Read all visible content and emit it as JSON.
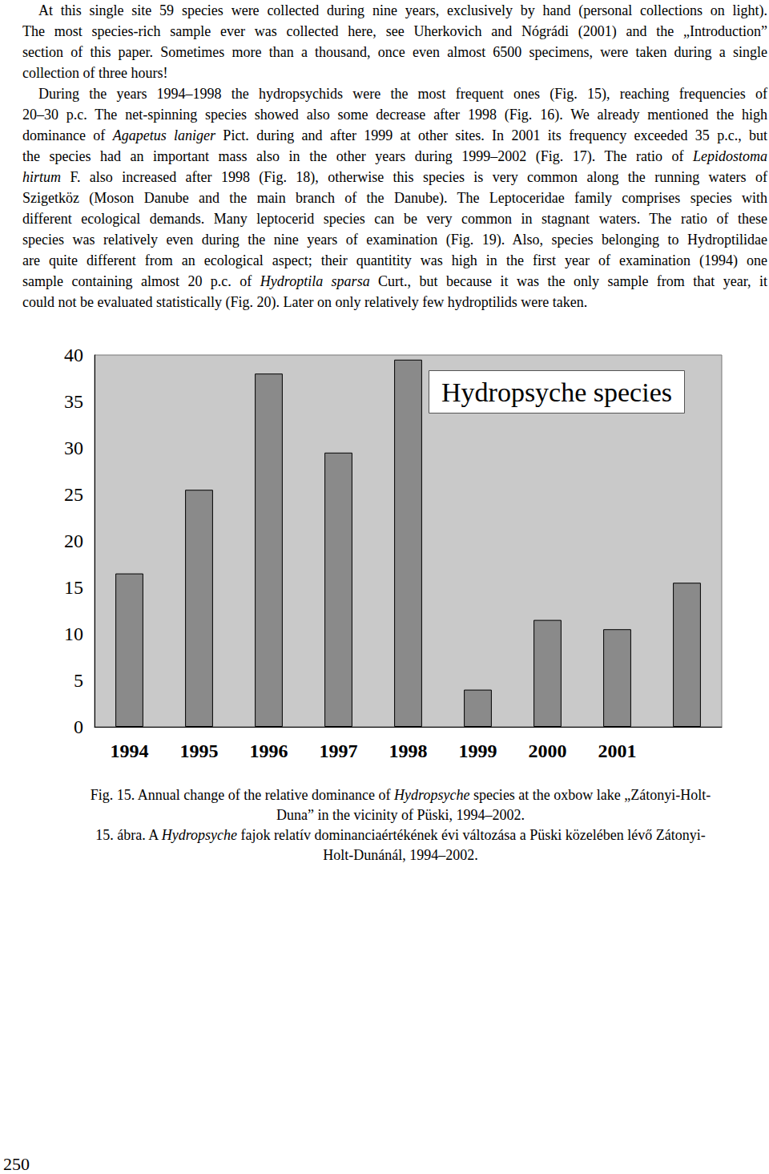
{
  "text": {
    "paragraphs": [
      [
        [
          "At this single site 59 species were collected during nine years, exclusively by hand (personal collections on light)."
        ],
        [
          "The most species-rich sample ever was collected here, see Uherkovich and Nógrádi (2001) and the „Introduction”"
        ],
        [
          "section of this paper. Sometimes more than a thousand, once even almost 6500 specimens, were taken during a single"
        ],
        [
          "collection of three hours!"
        ]
      ],
      [
        [
          "During the years 1994–1998 the hydropsychids were the most frequent ones (Fig. 15), reaching frequencies of"
        ],
        [
          "20–30 p.c. The net-spinning species showed also some decrease after 1998 (Fig. 16). We already mentioned the high"
        ],
        [
          "dominance of ",
          {
            "italic": "Agapetus laniger"
          },
          " Pict. during and after 1999 at other sites. In 2001 its frequency exceeded 35 p.c., but"
        ],
        [
          "the species had an important mass also in the other years during 1999–2002 (Fig. 17). The ratio of ",
          {
            "italic": "Lepidostoma"
          }
        ],
        [
          {
            "italic": "hirtum"
          },
          " F. also increased after 1998 (Fig. 18), otherwise this species is very common along the running waters of"
        ],
        [
          "Szigetköz (Moson Danube and the main branch of the Danube). The Leptoceridae family comprises species with"
        ],
        [
          "different ecological demands. Many leptocerid species can be very common in stagnant waters. The ratio of these"
        ],
        [
          "species was relatively even during the nine years of examination (Fig. 19). Also, species belonging to Hydroptilidae"
        ],
        [
          "are quite different from an ecological aspect; their quantitity was high in the first year of examination (1994) one"
        ],
        [
          "sample containing almost 20 p.c. of ",
          {
            "italic": "Hydroptila sparsa"
          },
          " Curt., but because it was the only sample from that year, it"
        ],
        [
          "could not be evaluated statistically (Fig. 20). Later on only relatively few hydroptilids were taken."
        ]
      ]
    ]
  },
  "chart_data": {
    "type": "bar",
    "title": "Hydropsyche species",
    "categories": [
      "1994",
      "1995",
      "1996",
      "1997",
      "1998",
      "1999",
      "2000",
      "2001",
      null
    ],
    "values": [
      16.5,
      25.5,
      38,
      29.5,
      39.5,
      4,
      11.5,
      10.5,
      15.5
    ],
    "color": "#8a8a8a",
    "ylim": [
      0,
      40
    ],
    "yticks": [
      0,
      5,
      10,
      15,
      20,
      25,
      30,
      35,
      40
    ],
    "grid": false
  },
  "caption": [
    [
      [
        "Fig. 15. Annual change of the relative dominance of ",
        {
          "italic": "Hydropsyche"
        },
        " species at the oxbow lake „Zátonyi-Holt-"
      ],
      [
        "Duna” in the vicinity of Püski, 1994–2002."
      ]
    ],
    [
      [
        "15. ábra. A ",
        {
          "italic": "Hydropsyche"
        },
        " fajok relatív dominanciaértékének évi változása a Püski közelében lévő Zátonyi-"
      ],
      [
        "Holt-Dunánál, 1994–2002."
      ]
    ]
  ],
  "page_number": "250"
}
